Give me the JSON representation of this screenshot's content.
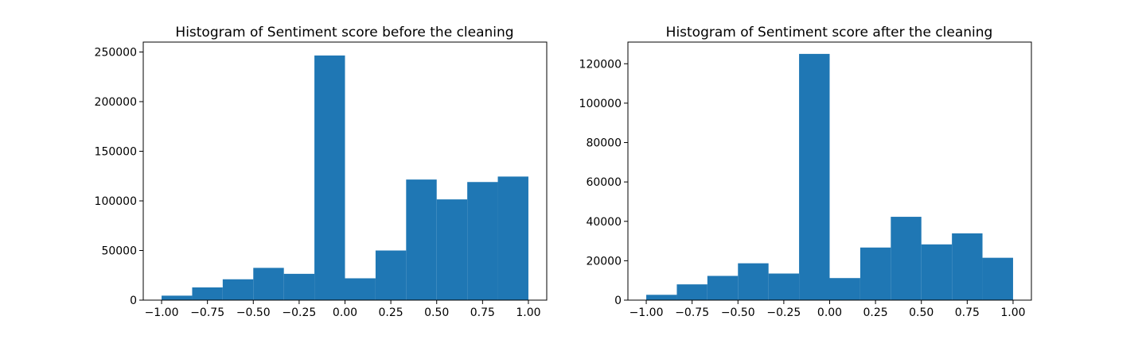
{
  "chart_data": [
    {
      "type": "bar",
      "title": "Histogram of Sentiment score before the cleaning",
      "bin_edges": [
        -1.0,
        -0.8333,
        -0.6667,
        -0.5,
        -0.3333,
        -0.1667,
        0.0,
        0.1667,
        0.3333,
        0.5,
        0.6667,
        0.8333,
        1.0
      ],
      "values": [
        4500,
        12800,
        21000,
        32500,
        26500,
        246500,
        22000,
        50000,
        121500,
        101500,
        119000,
        124500
      ],
      "xlim": [
        -1.1,
        1.1
      ],
      "ylim": [
        0,
        260000
      ],
      "xticks": [
        -1.0,
        -0.75,
        -0.5,
        -0.25,
        0.0,
        0.25,
        0.5,
        0.75,
        1.0
      ],
      "xtick_labels": [
        "−1.00",
        "−0.75",
        "−0.50",
        "−0.25",
        "0.00",
        "0.25",
        "0.50",
        "0.75",
        "1.00"
      ],
      "yticks": [
        0,
        50000,
        100000,
        150000,
        200000,
        250000
      ],
      "ytick_labels": [
        "0",
        "50000",
        "100000",
        "150000",
        "200000",
        "250000"
      ],
      "color": "#1f77b4",
      "grid": false
    },
    {
      "type": "bar",
      "title": "Histogram of Sentiment score after the cleaning",
      "bin_edges": [
        -1.0,
        -0.8333,
        -0.6667,
        -0.5,
        -0.3333,
        -0.1667,
        0.0,
        0.1667,
        0.3333,
        0.5,
        0.6667,
        0.8333,
        1.0
      ],
      "values": [
        2700,
        8000,
        12300,
        18700,
        13500,
        125000,
        11200,
        26700,
        42300,
        28300,
        33900,
        21500
      ],
      "xlim": [
        -1.1,
        1.1
      ],
      "ylim": [
        0,
        131000
      ],
      "xticks": [
        -1.0,
        -0.75,
        -0.5,
        -0.25,
        0.0,
        0.25,
        0.5,
        0.75,
        1.0
      ],
      "xtick_labels": [
        "−1.00",
        "−0.75",
        "−0.50",
        "−0.25",
        "0.00",
        "0.25",
        "0.50",
        "0.75",
        "1.00"
      ],
      "yticks": [
        0,
        20000,
        40000,
        60000,
        80000,
        100000,
        120000
      ],
      "ytick_labels": [
        "0",
        "20000",
        "40000",
        "60000",
        "80000",
        "100000",
        "120000"
      ],
      "color": "#1f77b4",
      "grid": false
    }
  ]
}
